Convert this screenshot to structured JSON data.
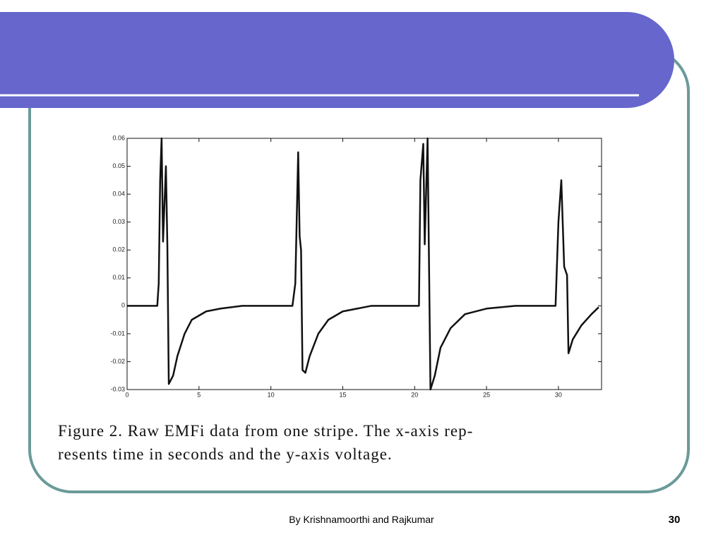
{
  "chart_data": {
    "type": "line",
    "x": [
      0,
      2.1,
      2.2,
      2.3,
      2.4,
      2.5,
      2.7,
      2.8,
      2.9,
      3.2,
      3.5,
      4,
      4.5,
      5.5,
      6.5,
      8,
      11.5,
      11.7,
      11.9,
      12.0,
      12.1,
      12.2,
      12.4,
      12.7,
      13.3,
      14,
      15,
      17,
      20.3,
      20.4,
      20.6,
      20.7,
      20.9,
      21.1,
      21.4,
      21.8,
      22.5,
      23.5,
      25,
      27,
      29.8,
      30.0,
      30.2,
      30.4,
      30.6,
      30.7,
      31,
      31.6,
      32.3,
      32.8
    ],
    "values": [
      0,
      0,
      0.008,
      0.045,
      0.06,
      0.023,
      0.05,
      0.022,
      -0.028,
      -0.025,
      -0.018,
      -0.01,
      -0.005,
      -0.002,
      -0.001,
      0,
      0,
      0.008,
      0.055,
      0.025,
      0.02,
      -0.023,
      -0.024,
      -0.018,
      -0.01,
      -0.005,
      -0.002,
      0,
      0,
      0.045,
      0.058,
      0.022,
      0.06,
      -0.03,
      -0.025,
      -0.015,
      -0.008,
      -0.003,
      -0.001,
      0,
      0,
      0.03,
      0.045,
      0.014,
      0.011,
      -0.017,
      -0.012,
      -0.007,
      -0.003,
      -0.0005
    ],
    "color": "#111111",
    "xlim": [
      0,
      33
    ],
    "ylim": [
      -0.03,
      0.06
    ],
    "xticks": [
      0,
      5,
      10,
      15,
      20,
      25,
      30
    ],
    "yticks": [
      -0.03,
      -0.02,
      -0.01,
      0,
      0.01,
      0.02,
      0.03,
      0.04,
      0.05,
      0.06
    ],
    "grid": false
  },
  "caption": [
    "Figure 2. Raw EMFi data from one stripe. The x-axis rep-",
    "resents time in seconds and the y-axis voltage."
  ],
  "footer": "By Krishnamoorthi and Rajkumar",
  "page_number": "30"
}
